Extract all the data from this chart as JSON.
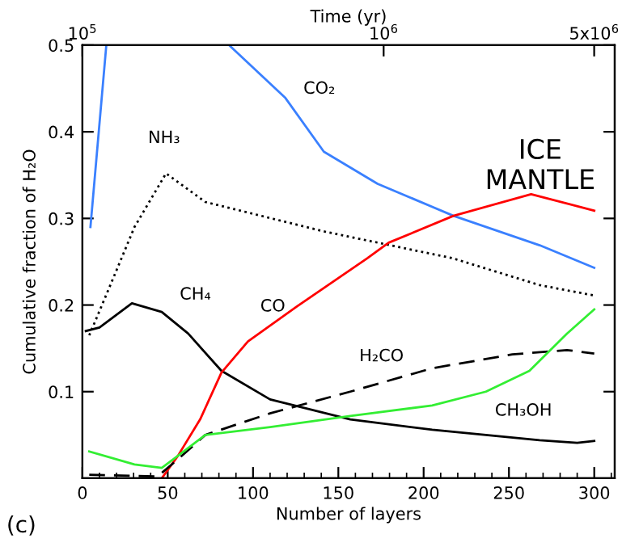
{
  "chart_data": {
    "type": "line",
    "xlabel": "Number of layers",
    "ylabel": "Cumulative fraction of H₂O",
    "x2label": "Time (yr)",
    "xlim": [
      0,
      312
    ],
    "xticks": [
      0,
      50,
      100,
      150,
      200,
      250,
      300
    ],
    "x2lim": [
      100000,
      5850000
    ],
    "x2ticks": [
      {
        "value": 100000,
        "label": "10$^{5}$"
      },
      {
        "value": 1000000,
        "label": "10$^{6}$"
      },
      {
        "value": 5000000,
        "label": "5x10$^{6}$"
      }
    ],
    "log": "x2",
    "ylim": [
      0,
      0.5
    ],
    "yticks": [
      0.1,
      0.2,
      0.3,
      0.4,
      0.5
    ],
    "grid": false,
    "legend": false,
    "marker": "none",
    "series": [
      {
        "name": "CO₂",
        "color": "#3a80ff",
        "line_style": "solid",
        "x": [
          4.7,
          14,
          50,
          86,
          119,
          141.5,
          173,
          217.5,
          268,
          300
        ],
        "values": [
          0.29,
          0.5,
          null,
          0.5,
          0.439,
          0.377,
          0.34,
          0.303,
          0.269,
          0.243
        ]
      },
      {
        "name": "NH₃",
        "color": "#000000",
        "line_style": "dotted",
        "x": [
          4,
          17,
          30.5,
          49,
          72,
          141.5,
          217,
          268,
          300
        ],
        "values": [
          0.165,
          0.226,
          0.29,
          0.352,
          0.319,
          0.285,
          0.254,
          0.223,
          0.211
        ]
      },
      {
        "name": "CH₄",
        "color": "#000000",
        "line_style": "solid",
        "x": [
          2,
          10,
          29,
          46.5,
          62,
          81.5,
          110,
          157,
          205,
          268,
          290,
          300
        ],
        "values": [
          0.17,
          0.174,
          0.202,
          0.192,
          0.167,
          0.124,
          0.091,
          0.068,
          0.056,
          0.044,
          0.041,
          0.043
        ]
      },
      {
        "name": "CO",
        "color": "#ff0000",
        "line_style": "solid",
        "x": [
          46.5,
          56,
          69,
          81.5,
          97,
          125.5,
          167,
          179.5,
          217.5,
          263,
          300
        ],
        "values": [
          0.0,
          0.026,
          0.068,
          0.122,
          0.158,
          0.198,
          0.254,
          0.272,
          0.303,
          0.328,
          0.309
        ]
      },
      {
        "name": "H₂CO",
        "color": "#000000",
        "line_style": "dashed",
        "x": [
          4,
          44,
          56,
          72,
          110,
          157,
          205,
          252,
          284,
          300
        ],
        "values": [
          0.004,
          0.002,
          0.022,
          0.05,
          0.075,
          0.1,
          0.127,
          0.143,
          0.148,
          0.144
        ]
      },
      {
        "name": "CH₃OH",
        "color": "#33ee33",
        "line_style": "solid",
        "x": [
          4,
          30.5,
          46.5,
          56,
          72,
          110,
          157,
          205,
          236.5,
          262,
          284,
          300
        ],
        "values": [
          0.031,
          0.016,
          0.012,
          0.026,
          0.05,
          0.059,
          0.072,
          0.084,
          0.1,
          0.124,
          0.167,
          0.195
        ]
      }
    ],
    "annotations": [
      "ICE\nMANTLE",
      "(c)"
    ]
  }
}
